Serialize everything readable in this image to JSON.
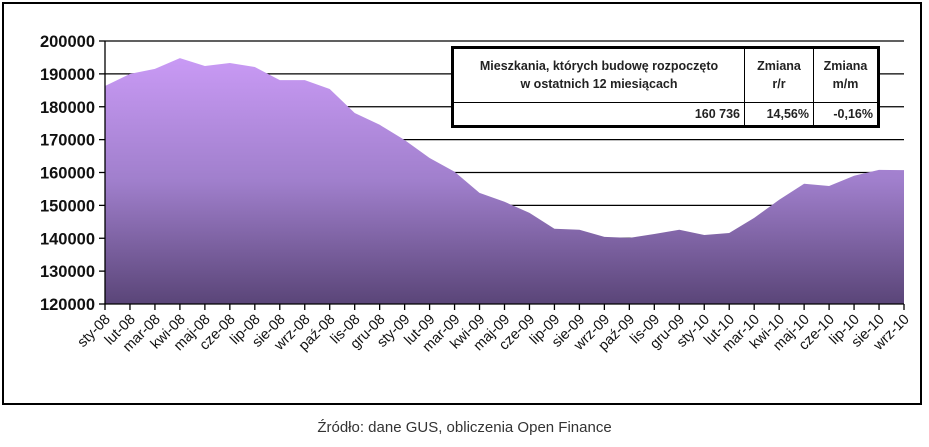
{
  "chart_data": {
    "type": "area",
    "title": "",
    "xlabel": "",
    "ylabel": "",
    "ylim": [
      120000,
      200000
    ],
    "yticks": [
      120000,
      130000,
      140000,
      150000,
      160000,
      170000,
      180000,
      190000,
      200000
    ],
    "grid": true,
    "legend": null,
    "categories": [
      "sty-08",
      "lut-08",
      "mar-08",
      "kwi-08",
      "maj-08",
      "cze-08",
      "lip-08",
      "sie-08",
      "wrz-08",
      "paź-08",
      "lis-08",
      "gru-08",
      "sty-09",
      "lut-09",
      "mar-09",
      "kwi-09",
      "maj-09",
      "cze-09",
      "lip-09",
      "sie-09",
      "wrz-09",
      "paź-09",
      "lis-09",
      "gru-09",
      "sty-10",
      "lut-10",
      "mar-10",
      "kwi-10",
      "maj-10",
      "cze-10",
      "lip-10",
      "sie-10",
      "wrz-10"
    ],
    "series": [
      {
        "name": "Mieszkania, których budowę rozpoczęto w ostatnich 12 miesiącach",
        "values": [
          186300,
          190000,
          191500,
          194800,
          192400,
          193300,
          192100,
          188100,
          188100,
          185400,
          178100,
          174500,
          169900,
          164400,
          160200,
          153800,
          151100,
          147700,
          142900,
          142600,
          140400,
          140100,
          141300,
          142600,
          141000,
          141600,
          146200,
          151700,
          156600,
          155900,
          159000,
          160800,
          160736
        ]
      }
    ],
    "colors": {
      "fill_top": "#c99af5",
      "fill_bottom": "#5a4578",
      "grid": "#000000"
    }
  },
  "info_table": {
    "header_main": "Mieszkania, których budowę rozpoczęto w ostatnich 12 miesiącach",
    "header_main_line1": "Mieszkania, których budowę rozpoczęto",
    "header_main_line2": "w ostatnich 12 miesiącach",
    "header_yy_line1": "Zmiana",
    "header_yy_line2": "r/r",
    "header_mm_line1": "Zmiana",
    "header_mm_line2": "m/m",
    "value_main": "160 736",
    "value_yy": "14,56%",
    "value_mm": "-0,16%"
  },
  "source": "Źródło: dane GUS, obliczenia Open Finance"
}
